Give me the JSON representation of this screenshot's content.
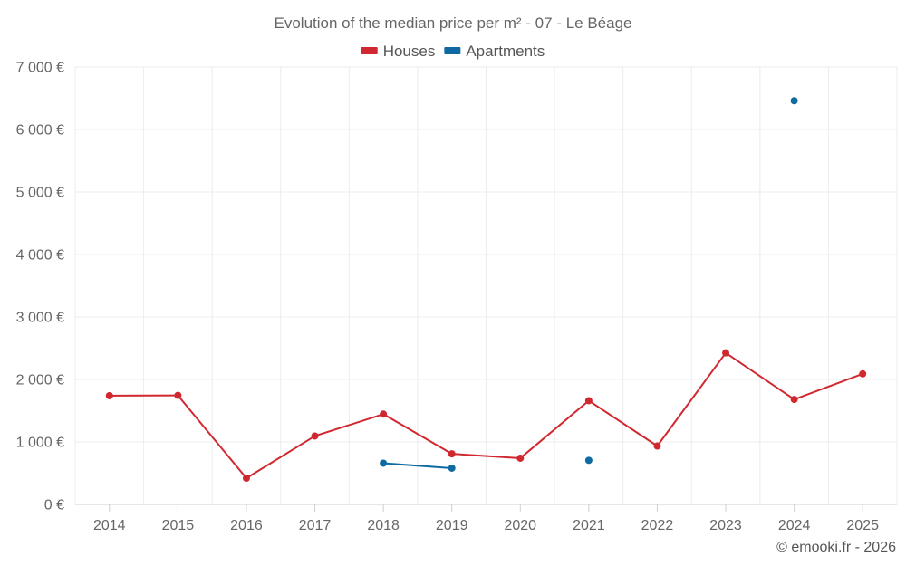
{
  "chart_data": {
    "type": "line",
    "title": "Evolution of the median price per m² - 07 - Le Béage",
    "categories": [
      "2014",
      "2015",
      "2016",
      "2017",
      "2018",
      "2019",
      "2020",
      "2021",
      "2022",
      "2023",
      "2024",
      "2025"
    ],
    "ylim": [
      0,
      7000
    ],
    "yticks": [
      0,
      1000,
      2000,
      3000,
      4000,
      5000,
      6000,
      7000
    ],
    "ytick_labels": [
      "0 €",
      "1 000 €",
      "2 000 €",
      "3 000 €",
      "4 000 €",
      "5 000 €",
      "6 000 €",
      "7 000 €"
    ],
    "grid": true,
    "legend_position": "top-center",
    "series": [
      {
        "name": "Houses",
        "color": "#d0282e",
        "values": [
          1740,
          1745,
          420,
          1095,
          1445,
          810,
          740,
          1660,
          935,
          2425,
          1680,
          2090
        ]
      },
      {
        "name": "Apartments",
        "color": "#0e6aa0",
        "values": [
          null,
          null,
          null,
          null,
          660,
          580,
          null,
          705,
          null,
          null,
          6460,
          null
        ]
      }
    ],
    "credit": "© emooki.fr - 2026"
  }
}
